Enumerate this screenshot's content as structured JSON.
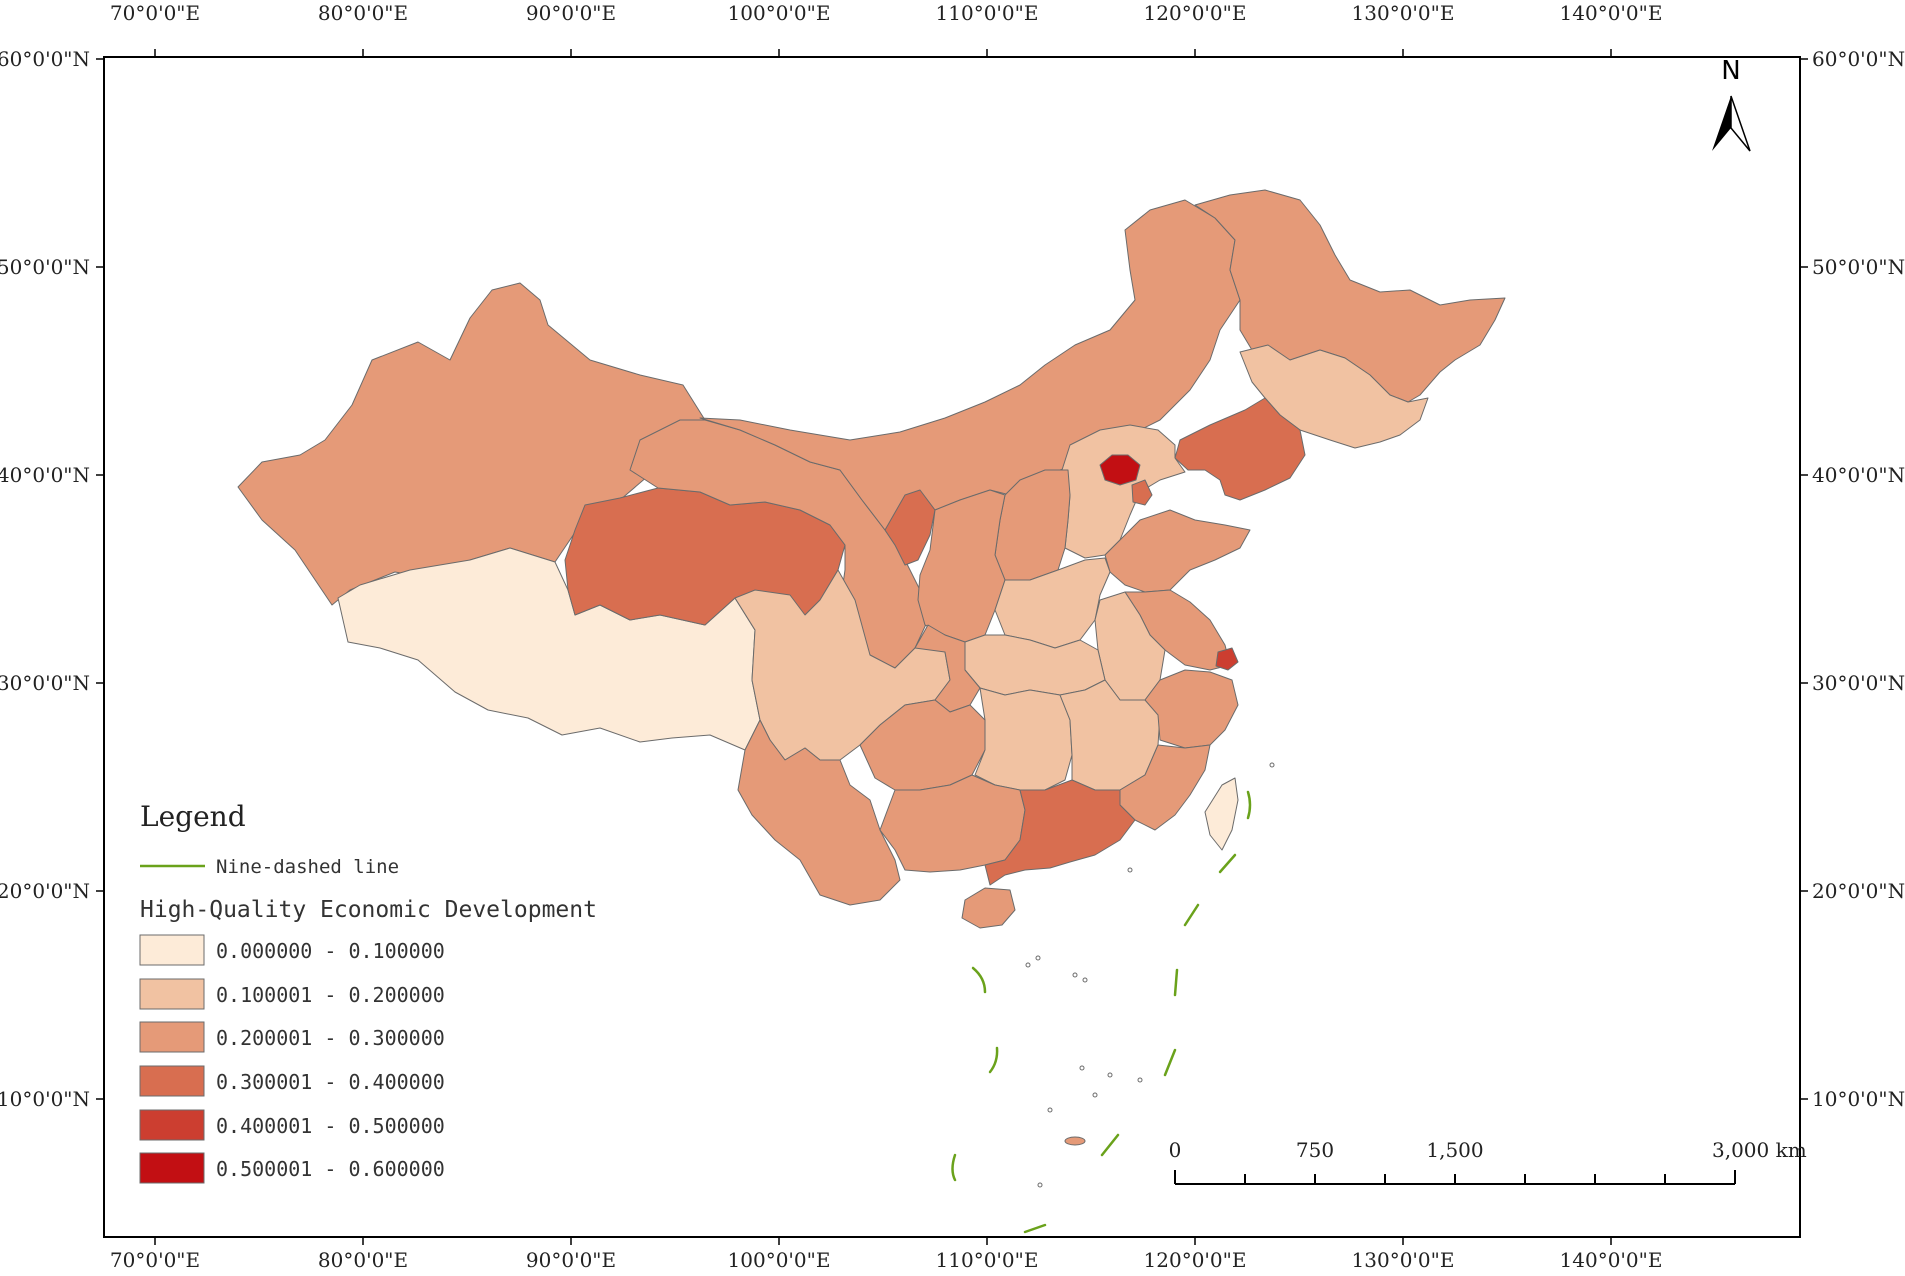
{
  "map": {
    "lon_ticks": [
      "70°0'0\"E",
      "80°0'0\"E",
      "90°0'0\"E",
      "100°0'0\"E",
      "110°0'0\"E",
      "120°0'0\"E",
      "130°0'0\"E",
      "140°0'0\"E"
    ],
    "lat_ticks": [
      "60°0'0\"N",
      "50°0'0\"N",
      "40°0'0\"N",
      "30°0'0\"N",
      "20°0'0\"N",
      "10°0'0\"N"
    ],
    "north_arrow_label": "N",
    "colors": {
      "class1": "#fdebd8",
      "class2": "#f1c2a2",
      "class3": "#e59a78",
      "class4": "#d86e50",
      "class5": "#cc3e30",
      "class6": "#c20f13",
      "nine_dash": "#6aa21b",
      "border": "#6b6b6b"
    }
  },
  "legend": {
    "title": "Legend",
    "line_item": "Nine-dashed line",
    "section_title": "High-Quality Economic Development",
    "classes": [
      {
        "label": "0.000000 - 0.100000",
        "color": "#fdebd8"
      },
      {
        "label": "0.100001 - 0.200000",
        "color": "#f1c2a2"
      },
      {
        "label": "0.200001 - 0.300000",
        "color": "#e59a78"
      },
      {
        "label": "0.300001 - 0.400000",
        "color": "#d86e50"
      },
      {
        "label": "0.400001 - 0.500000",
        "color": "#cc3e30"
      },
      {
        "label": "0.500001 - 0.600000",
        "color": "#c20f13"
      }
    ]
  },
  "scale_bar": {
    "labels": [
      "0",
      "750",
      "1,500",
      "3,000 km"
    ]
  }
}
